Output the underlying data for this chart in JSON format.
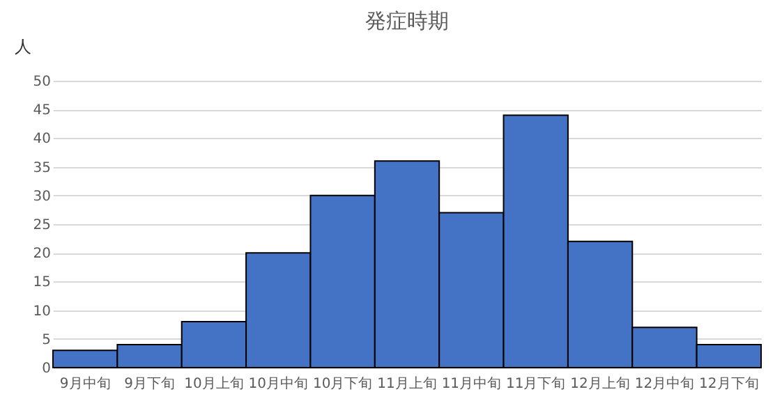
{
  "chart_data": {
    "type": "bar",
    "title": "発症時期",
    "ylabel": "人",
    "categories": [
      "9月中旬",
      "9月下旬",
      "10月上旬",
      "10月中旬",
      "10月下旬",
      "11月上旬",
      "11月中旬",
      "11月下旬",
      "12月上旬",
      "12月中旬",
      "12月下旬"
    ],
    "values": [
      3,
      4,
      8,
      20,
      30,
      36,
      27,
      44,
      22,
      7,
      4
    ],
    "color": "#4472c4",
    "ylim": [
      0,
      50
    ],
    "yticks": [
      0,
      5,
      10,
      15,
      20,
      25,
      30,
      35,
      40,
      45,
      50
    ],
    "grid": "y"
  }
}
